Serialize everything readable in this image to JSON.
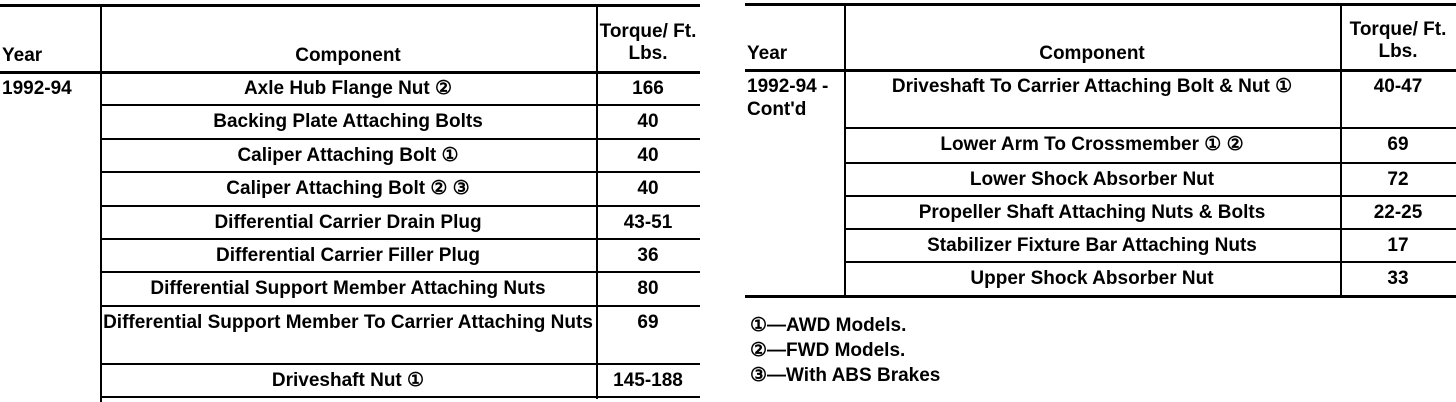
{
  "left_table": {
    "headers": {
      "year": "Year",
      "component": "Component",
      "torque": "Torque/ Ft. Lbs."
    },
    "year": "1992-94",
    "rows": [
      {
        "component": "Axle Hub Flange Nut ②",
        "torque": "166"
      },
      {
        "component": "Backing Plate Attaching Bolts",
        "torque": "40"
      },
      {
        "component": "Caliper Attaching Bolt ①",
        "torque": "40"
      },
      {
        "component": "Caliper Attaching Bolt ② ③",
        "torque": "40"
      },
      {
        "component": "Differential Carrier Drain Plug",
        "torque": "43-51"
      },
      {
        "component": "Differential Carrier Filler Plug",
        "torque": "36"
      },
      {
        "component": "Differential Support Member Attaching Nuts",
        "torque": "80"
      },
      {
        "component": "Differential Support Member To Carrier Attaching Nuts",
        "torque": "69"
      },
      {
        "component": "Driveshaft Nut ①",
        "torque": "145-188"
      }
    ]
  },
  "right_table": {
    "headers": {
      "year": "Year",
      "component": "Component",
      "torque": "Torque/ Ft. Lbs."
    },
    "year": "1992-94 -Cont'd",
    "rows": [
      {
        "component": "Driveshaft To Carrier Attaching Bolt & Nut ①",
        "torque": "40-47"
      },
      {
        "component": "Lower Arm To Crossmember ① ②",
        "torque": "69"
      },
      {
        "component": "Lower Shock Absorber Nut",
        "torque": "72"
      },
      {
        "component": "Propeller Shaft Attaching Nuts & Bolts",
        "torque": "22-25"
      },
      {
        "component": "Stabilizer Fixture Bar Attaching Nuts",
        "torque": "17"
      },
      {
        "component": "Upper Shock Absorber Nut",
        "torque": "33"
      }
    ]
  },
  "footnotes": [
    "①—AWD Models.",
    "②—FWD Models.",
    "③—With ABS Brakes"
  ]
}
